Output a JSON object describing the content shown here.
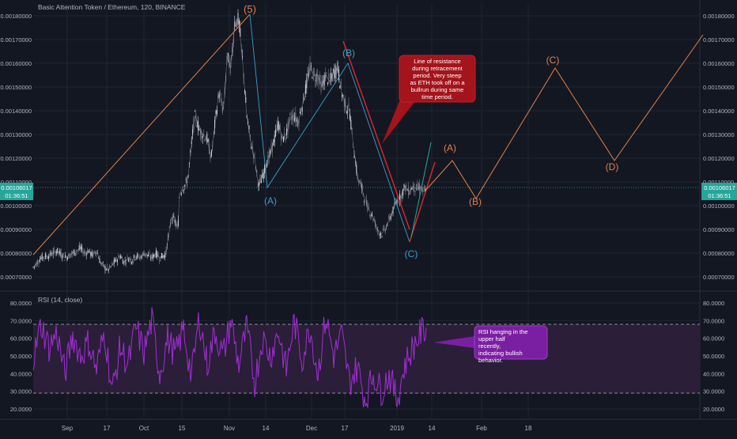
{
  "header": {
    "title": "Basic Attention Token / Ethereum, 120, BINANCE"
  },
  "price_panel": {
    "current_price_label": "0.00106017",
    "countdown_label": "01:36:51",
    "ticks": [
      "0.00180000",
      "0.00170000",
      "0.00160000",
      "0.00150000",
      "0.00140000",
      "0.00130000",
      "0.00120000",
      "0.00110000",
      "0.00100000",
      "0.00090000",
      "0.00080000",
      "0.00070000"
    ]
  },
  "rsi_panel": {
    "title": "RSI (14, close)",
    "ticks": [
      "80.0000",
      "70.0000",
      "60.0000",
      "50.0000",
      "40.0000",
      "30.0000",
      "20.0000"
    ]
  },
  "time_axis": {
    "labels": [
      "Sep",
      "17",
      "Oct",
      "15",
      "Nov",
      "14",
      "Dec",
      "17",
      "2019",
      "14",
      "Feb",
      "18"
    ]
  },
  "wave_labels": {
    "w5": "(5)",
    "a1": "(A)",
    "b1": "(B)",
    "c1": "(C)",
    "a2": "(A)",
    "b2": "(B)",
    "c2": "(C)",
    "d2": "(D)"
  },
  "annotations": {
    "resistance": "Line of resistance during retracement period. Very steep as ETH took off on a bullrun during same time period.",
    "rsi": "RSI hanging in the upper half recently, indicating bullish behavior."
  },
  "colors": {
    "background": "#131722",
    "grid": "#1e2433",
    "axis_text": "#b2b5be",
    "bull": "#d1d4dc",
    "bear": "#787b86",
    "wave_orange": "#e0804a",
    "wave_blue": "#3b9fc9",
    "resistance_red": "#e0262c",
    "projection_green": "#26a69a",
    "rsi_line": "#a32ed6",
    "rsi_band": "#2a1e38",
    "note_red": "#a3141c",
    "note_purple": "#7b1fa2",
    "price_line": "#26a69a"
  },
  "chart_data": {
    "type": "line",
    "title": "Basic Attention Token / Ethereum, 120, BINANCE",
    "series": [
      {
        "name": "price",
        "x": [
          0,
          10,
          20,
          30,
          40,
          50,
          55,
          60,
          65,
          70,
          75,
          80,
          85,
          90,
          95,
          100,
          105,
          110,
          115,
          120,
          125,
          130,
          135,
          140,
          145,
          150,
          155,
          160,
          165,
          168,
          170,
          175,
          180,
          183,
          185,
          190,
          195,
          200,
          203,
          205,
          210,
          215,
          220,
          225,
          230,
          235,
          240,
          243,
          245,
          250,
          255,
          260,
          265,
          270,
          275,
          280,
          285,
          290,
          295,
          300,
          305,
          310,
          315,
          320,
          325,
          330,
          335,
          340,
          345,
          350,
          355,
          360,
          365,
          370,
          375,
          380,
          385,
          390,
          395,
          400,
          405,
          410,
          415,
          420,
          425,
          430,
          435,
          440,
          445,
          450,
          455,
          460,
          465,
          470,
          475,
          480,
          485,
          490,
          493,
          495,
          497
        ],
        "y": [
          0.00074,
          0.00078,
          0.00079,
          0.00081,
          0.00078,
          0.0008,
          0.00081,
          0.00082,
          0.0008,
          0.00081,
          0.00079,
          0.00081,
          0.00076,
          0.00074,
          0.00073,
          0.00075,
          0.00077,
          0.00079,
          0.00076,
          0.00078,
          0.00077,
          0.00079,
          0.00078,
          0.0008,
          0.00079,
          0.00078,
          0.0008,
          0.00078,
          0.00079,
          0.0008,
          0.00085,
          0.00095,
          0.00093,
          0.0009,
          0.00105,
          0.00108,
          0.0011,
          0.00125,
          0.00135,
          0.00138,
          0.00132,
          0.0013,
          0.00128,
          0.0012,
          0.00135,
          0.00148,
          0.0014,
          0.0015,
          0.00163,
          0.00158,
          0.00178,
          0.00178,
          0.0016,
          0.00138,
          0.00127,
          0.0012,
          0.00108,
          0.00112,
          0.00118,
          0.00122,
          0.00128,
          0.00135,
          0.00128,
          0.0013,
          0.00137,
          0.00138,
          0.00135,
          0.00142,
          0.0015,
          0.00158,
          0.00155,
          0.00155,
          0.0015,
          0.00155,
          0.00152,
          0.00156,
          0.00158,
          0.00148,
          0.00142,
          0.0014,
          0.00125,
          0.00112,
          0.00108,
          0.00102,
          0.00098,
          0.00095,
          0.0009,
          0.00088,
          0.0009,
          0.00094,
          0.00098,
          0.00102,
          0.00104,
          0.00108,
          0.00106,
          0.00108,
          0.00107,
          0.00108,
          0.00106,
          0.00106,
          0.00106
        ]
      },
      {
        "name": "RSI",
        "x": [
          0,
          10,
          20,
          30,
          40,
          50,
          60,
          70,
          80,
          90,
          100,
          110,
          120,
          130,
          140,
          150,
          160,
          170,
          180,
          190,
          200,
          210,
          220,
          230,
          240,
          250,
          260,
          270,
          280,
          290,
          300,
          310,
          320,
          330,
          340,
          350,
          360,
          370,
          380,
          390,
          400,
          410,
          420,
          430,
          440,
          450,
          460,
          470,
          480,
          490,
          497
        ],
        "y": [
          48,
          68,
          55,
          63,
          40,
          62,
          50,
          58,
          42,
          64,
          30,
          55,
          45,
          66,
          52,
          70,
          40,
          60,
          50,
          66,
          38,
          72,
          45,
          64,
          50,
          70,
          45,
          66,
          35,
          60,
          50,
          64,
          42,
          70,
          48,
          66,
          40,
          72,
          50,
          62,
          35,
          44,
          25,
          40,
          30,
          40,
          25,
          45,
          55,
          63,
          66
        ]
      }
    ],
    "ylim_price": [
      0.00065,
      0.00185
    ],
    "ylim_rsi": [
      15,
      85
    ],
    "rsi_levels": [
      70,
      30
    ],
    "projection": [
      {
        "label": "(A)",
        "x": 530,
        "y": 0.00119
      },
      {
        "label": "(B)",
        "x": 560,
        "y": 0.00103
      },
      {
        "label": "(C)",
        "x": 660,
        "y": 0.00158
      },
      {
        "label": "(D)",
        "x": 735,
        "y": 0.00119
      },
      {
        "label": "",
        "x": 847,
        "y": 0.00172
      }
    ],
    "legend": "none",
    "grid": true
  }
}
